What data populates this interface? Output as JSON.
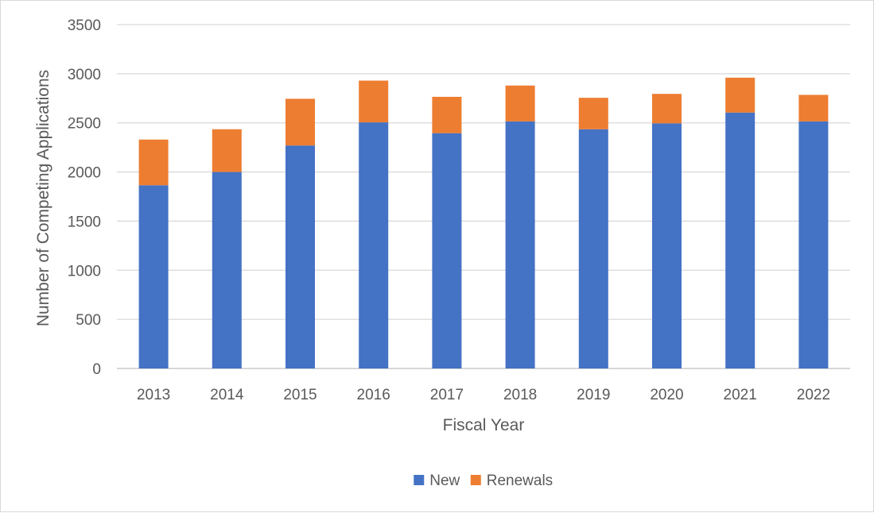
{
  "chart_data": {
    "type": "bar",
    "stacked": true,
    "categories": [
      "2013",
      "2014",
      "2015",
      "2016",
      "2017",
      "2018",
      "2019",
      "2020",
      "2021",
      "2022"
    ],
    "series": [
      {
        "name": "New",
        "color": "#4472c4",
        "values": [
          1865,
          2000,
          2270,
          2505,
          2395,
          2515,
          2435,
          2495,
          2605,
          2515
        ]
      },
      {
        "name": "Renewals",
        "color": "#ed7d31",
        "values": [
          465,
          435,
          475,
          425,
          370,
          365,
          320,
          300,
          355,
          270
        ]
      }
    ],
    "xlabel": "Fiscal Year",
    "ylabel": "Number of Competing Applications",
    "ylim": [
      0,
      3500
    ],
    "yticks": [
      "0",
      "500",
      "1000",
      "1500",
      "2000",
      "2500",
      "3000",
      "3500"
    ],
    "grid": true,
    "legend_position": "bottom"
  }
}
